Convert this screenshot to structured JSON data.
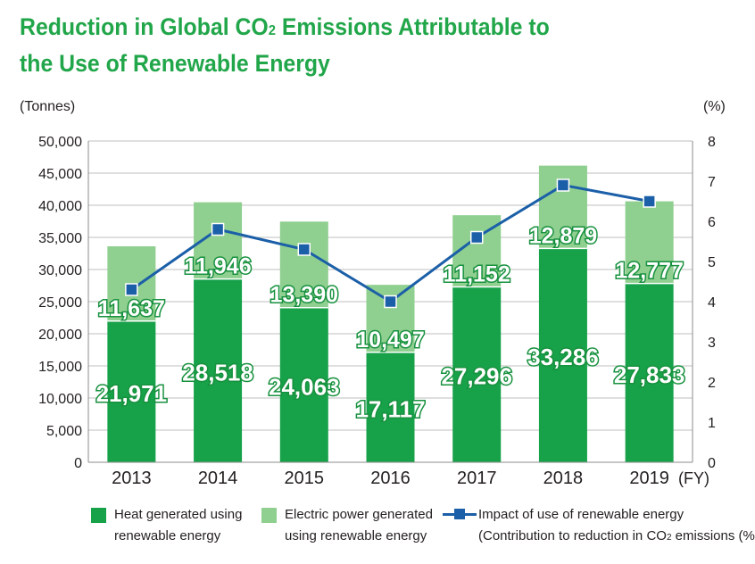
{
  "title": {
    "line1": "Reduction in Global CO",
    "line1_sub": "2",
    "line1_end": " Emissions Attributable to",
    "line2": "the Use of Renewable Energy"
  },
  "chart_data": {
    "type": "bar",
    "stacked": true,
    "categories": [
      "2013",
      "2014",
      "2015",
      "2016",
      "2017",
      "2018",
      "2019"
    ],
    "x_unit": "(FY)",
    "y_left_label": "(Tonnes)",
    "y_right_label": "(%)",
    "ylim_left": [
      0,
      50000
    ],
    "yticks_left": [
      "0",
      "5,000",
      "10,000",
      "15,000",
      "20,000",
      "25,000",
      "30,000",
      "35,000",
      "40,000",
      "45,000",
      "50,000"
    ],
    "ylim_right": [
      0,
      8
    ],
    "yticks_right": [
      "0",
      "1",
      "2",
      "3",
      "4",
      "5",
      "6",
      "7",
      "8"
    ],
    "grid": true,
    "series": [
      {
        "name": "Heat generated using renewable energy",
        "values": [
          21971,
          28518,
          24063,
          17117,
          27296,
          33286,
          27833
        ],
        "labels": [
          "21,971",
          "28,518",
          "24,063",
          "17,117",
          "27,296",
          "33,286",
          "27,833"
        ],
        "color": "#17a24a"
      },
      {
        "name": "Electric power generated using renewable energy",
        "values": [
          11637,
          11946,
          13390,
          10497,
          11152,
          12879,
          12777
        ],
        "labels": [
          "11,637",
          "11,946",
          "13,390",
          "10,497",
          "11,152",
          "12,879",
          "12,777"
        ],
        "color": "#8fcf8f"
      },
      {
        "name": "Impact of use of renewable energy (Contribution to reduction in CO2 emissions (%))",
        "type": "line",
        "axis": "right",
        "values": [
          4.3,
          5.8,
          5.3,
          4.0,
          5.6,
          6.9,
          6.5
        ],
        "color": "#1b5fa8"
      }
    ]
  },
  "legend": {
    "heat_line1": "Heat generated using",
    "heat_line2": "renewable energy",
    "elec_line1": "Electric power generated",
    "elec_line2": "using renewable energy",
    "impact_line1": "Impact of use of renewable energy",
    "impact_line2_a": "(Contribution to reduction in CO",
    "impact_line2_sub": "2",
    "impact_line2_b": " emissions (%))"
  }
}
